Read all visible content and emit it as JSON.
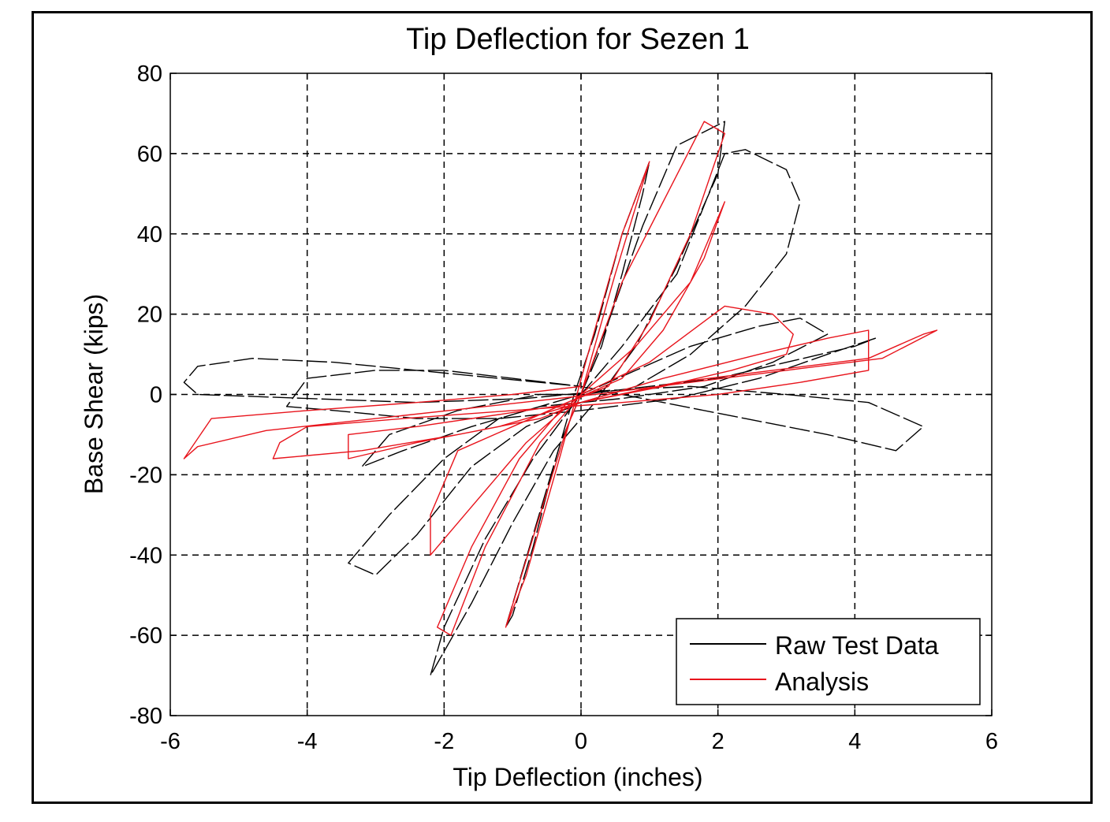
{
  "chart_data": {
    "type": "line",
    "title": "Tip Deflection for Sezen 1",
    "xlabel": "Tip Deflection (inches)",
    "ylabel": "Base Shear (kips)",
    "xlim": [
      -6,
      6
    ],
    "ylim": [
      -80,
      80
    ],
    "xticks": [
      -6,
      -4,
      -2,
      0,
      2,
      4,
      6
    ],
    "yticks": [
      80,
      60,
      40,
      20,
      0,
      -20,
      -40,
      -60,
      -80
    ],
    "xtick_labels": [
      "-6",
      "-4",
      "-2",
      "0",
      "2",
      "4",
      "6"
    ],
    "ytick_labels": [
      "80",
      "60",
      "40",
      "20",
      "0",
      "-20",
      "-40",
      "-60",
      "-80"
    ],
    "grid": true,
    "legend_position": "bottom-right",
    "colors": {
      "raw": "#000000",
      "analysis": "#e8141c"
    },
    "series": [
      {
        "name": "Raw Test Data",
        "style": "dashed",
        "points": [
          [
            0,
            0
          ],
          [
            0.3,
            12
          ],
          [
            0.6,
            30
          ],
          [
            0.9,
            50
          ],
          [
            1.0,
            58
          ],
          [
            0.6,
            40
          ],
          [
            0.2,
            15
          ],
          [
            -0.1,
            0
          ],
          [
            -0.4,
            -18
          ],
          [
            -0.7,
            -38
          ],
          [
            -1.0,
            -55
          ],
          [
            -1.1,
            -58
          ],
          [
            -0.7,
            -35
          ],
          [
            -0.3,
            -12
          ],
          [
            0,
            0
          ],
          [
            0.4,
            18
          ],
          [
            0.9,
            42
          ],
          [
            1.4,
            62
          ],
          [
            2.1,
            68
          ],
          [
            2.0,
            55
          ],
          [
            1.4,
            32
          ],
          [
            0.8,
            12
          ],
          [
            0.2,
            -2
          ],
          [
            -0.4,
            -14
          ],
          [
            -1.0,
            -32
          ],
          [
            -1.6,
            -52
          ],
          [
            -2.2,
            -70
          ],
          [
            -2.0,
            -58
          ],
          [
            -1.4,
            -36
          ],
          [
            -0.7,
            -16
          ],
          [
            0,
            0
          ],
          [
            0.6,
            12
          ],
          [
            1.4,
            30
          ],
          [
            2.1,
            60
          ],
          [
            2.4,
            61
          ],
          [
            3.0,
            56
          ],
          [
            3.2,
            48
          ],
          [
            3.0,
            35
          ],
          [
            2.4,
            22
          ],
          [
            1.6,
            10
          ],
          [
            0.8,
            2
          ],
          [
            0,
            -2
          ],
          [
            -0.8,
            -8
          ],
          [
            -1.6,
            -18
          ],
          [
            -2.4,
            -35
          ],
          [
            -3.0,
            -45
          ],
          [
            -3.4,
            -42
          ],
          [
            -2.8,
            -30
          ],
          [
            -2.0,
            -16
          ],
          [
            -1.2,
            -6
          ],
          [
            0,
            0
          ],
          [
            0.8,
            6
          ],
          [
            1.6,
            12
          ],
          [
            2.6,
            17
          ],
          [
            3.2,
            19
          ],
          [
            3.6,
            15
          ],
          [
            2.8,
            8
          ],
          [
            1.8,
            2
          ],
          [
            0.6,
            -1
          ],
          [
            -0.6,
            -3
          ],
          [
            -1.6,
            -8
          ],
          [
            -2.6,
            -14
          ],
          [
            -3.2,
            -18
          ],
          [
            -2.8,
            -10
          ],
          [
            -1.8,
            -4
          ],
          [
            -0.6,
            0
          ],
          [
            0,
            0
          ],
          [
            1.0,
            2
          ],
          [
            2.0,
            4
          ],
          [
            3.0,
            8
          ],
          [
            4.0,
            12
          ],
          [
            4.3,
            14
          ],
          [
            3.6,
            10
          ],
          [
            2.6,
            4
          ],
          [
            1.4,
            -1
          ],
          [
            0,
            -4
          ],
          [
            -1.2,
            -6
          ],
          [
            -2.4,
            -6
          ],
          [
            -3.6,
            -4
          ],
          [
            -4.3,
            -3
          ],
          [
            -4.0,
            4
          ],
          [
            -3.0,
            6
          ],
          [
            -2.0,
            6
          ],
          [
            -1.0,
            4
          ],
          [
            0,
            2
          ],
          [
            1.2,
            -2
          ],
          [
            2.4,
            -6
          ],
          [
            3.6,
            -10
          ],
          [
            4.6,
            -14
          ],
          [
            5.0,
            -8
          ],
          [
            4.2,
            -2
          ],
          [
            3.0,
            0
          ],
          [
            1.6,
            2
          ],
          [
            0.4,
            1
          ],
          [
            -0.8,
            -1
          ],
          [
            -2.4,
            -2
          ],
          [
            -4.0,
            -1
          ],
          [
            -5.6,
            0
          ],
          [
            -5.8,
            3
          ],
          [
            -5.6,
            7
          ],
          [
            -4.8,
            9
          ],
          [
            -3.6,
            8
          ],
          [
            -2.4,
            6
          ],
          [
            -1.2,
            4
          ],
          [
            0,
            2
          ]
        ]
      },
      {
        "name": "Analysis",
        "style": "solid",
        "points": [
          [
            0,
            0
          ],
          [
            0.5,
            30
          ],
          [
            1.0,
            58
          ],
          [
            0.6,
            40
          ],
          [
            0.1,
            10
          ],
          [
            -0.3,
            -15
          ],
          [
            -0.8,
            -45
          ],
          [
            -1.1,
            -58
          ],
          [
            -0.6,
            -30
          ],
          [
            -0.2,
            -8
          ],
          [
            0,
            0
          ],
          [
            0.6,
            28
          ],
          [
            1.2,
            48
          ],
          [
            1.8,
            68
          ],
          [
            2.1,
            65
          ],
          [
            1.6,
            40
          ],
          [
            1.0,
            18
          ],
          [
            0.4,
            2
          ],
          [
            -0.2,
            -2
          ],
          [
            -0.9,
            -16
          ],
          [
            -1.6,
            -38
          ],
          [
            -2.1,
            -58
          ],
          [
            -1.9,
            -60
          ],
          [
            -1.4,
            -38
          ],
          [
            -0.6,
            -12
          ],
          [
            0,
            0
          ],
          [
            0.8,
            12
          ],
          [
            1.6,
            28
          ],
          [
            2.1,
            48
          ],
          [
            1.8,
            34
          ],
          [
            1.2,
            16
          ],
          [
            0.6,
            4
          ],
          [
            -0.2,
            -2
          ],
          [
            -1.0,
            -8
          ],
          [
            -1.8,
            -14
          ],
          [
            -2.2,
            -30
          ],
          [
            -2.2,
            -40
          ],
          [
            -1.6,
            -28
          ],
          [
            -0.8,
            -12
          ],
          [
            0,
            0
          ],
          [
            1.0,
            8
          ],
          [
            2.1,
            22
          ],
          [
            2.8,
            20
          ],
          [
            3.1,
            15
          ],
          [
            3.0,
            10
          ],
          [
            2.2,
            6
          ],
          [
            1.2,
            2
          ],
          [
            0,
            -2
          ],
          [
            -1.2,
            -5
          ],
          [
            -2.4,
            -8
          ],
          [
            -3.4,
            -10
          ],
          [
            -3.4,
            -16
          ],
          [
            -2.4,
            -12
          ],
          [
            -1.2,
            -8
          ],
          [
            0,
            -2
          ],
          [
            1.2,
            4
          ],
          [
            2.6,
            10
          ],
          [
            3.6,
            14
          ],
          [
            4.2,
            16
          ],
          [
            4.2,
            6
          ],
          [
            3.2,
            3
          ],
          [
            2.0,
            0
          ],
          [
            0.6,
            -2
          ],
          [
            -1.0,
            -4
          ],
          [
            -2.6,
            -6
          ],
          [
            -4.0,
            -8
          ],
          [
            -4.4,
            -12
          ],
          [
            -4.5,
            -16
          ],
          [
            -3.2,
            -14
          ],
          [
            -1.8,
            -10
          ],
          [
            -0.6,
            -6
          ],
          [
            0,
            -2
          ],
          [
            1.4,
            3
          ],
          [
            2.8,
            6
          ],
          [
            4.2,
            9
          ],
          [
            5.0,
            15
          ],
          [
            5.2,
            16
          ],
          [
            4.4,
            9
          ],
          [
            3.0,
            6
          ],
          [
            1.6,
            3
          ],
          [
            0.2,
            0
          ],
          [
            -1.4,
            -3
          ],
          [
            -3.0,
            -6
          ],
          [
            -4.6,
            -9
          ],
          [
            -5.6,
            -13
          ],
          [
            -5.8,
            -16
          ],
          [
            -5.4,
            -6
          ],
          [
            -4.0,
            -4
          ],
          [
            -2.4,
            -2
          ],
          [
            -1.0,
            0
          ],
          [
            0,
            2
          ]
        ]
      }
    ]
  }
}
